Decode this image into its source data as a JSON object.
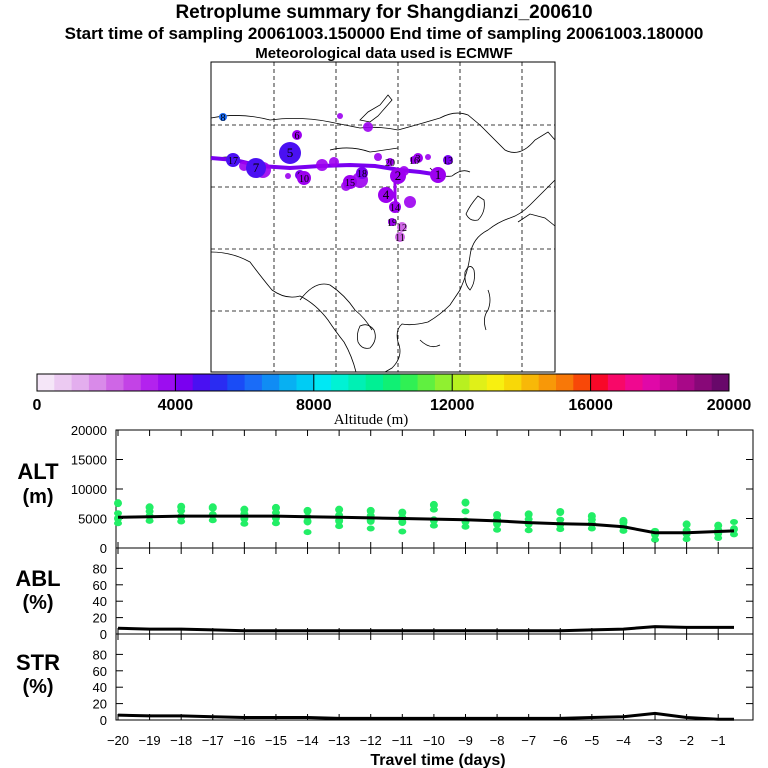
{
  "titles": {
    "main": "Retroplume summary for Shangdianzi_200610",
    "sampling": "Start time of sampling 20061003.150000     End time of sampling 20061003.180000",
    "met": "Meteorological data used is ECMWF"
  },
  "colorbar": {
    "label": "Altitude (m)",
    "ticks": [
      "0",
      "4000",
      "8000",
      "12000",
      "16000",
      "20000"
    ],
    "colors": [
      "#f5e6f8",
      "#eccaf2",
      "#e3aeee",
      "#d98ae9",
      "#cf66e6",
      "#c343e6",
      "#b322ee",
      "#9c0df0",
      "#7a00f0",
      "#4a10f2",
      "#2a2cf2",
      "#1a4cf6",
      "#1a6cf8",
      "#108cf4",
      "#08b0f2",
      "#00ccf4",
      "#00e8f4",
      "#00f2d4",
      "#00f0b4",
      "#00f094",
      "#10f074",
      "#30f054",
      "#60f040",
      "#90f030",
      "#b8f020",
      "#e0f018",
      "#f8f010",
      "#f8d808",
      "#f8b808",
      "#f89808",
      "#f87808",
      "#f84808",
      "#f80828",
      "#f80868",
      "#f00890",
      "#e008a8",
      "#c80898",
      "#a80888",
      "#880878",
      "#68086a"
    ]
  },
  "map": {
    "numbered_clusters": [
      {
        "label": "1",
        "color": "#9c00f0"
      },
      {
        "label": "2",
        "color": "#9c00f0"
      },
      {
        "label": "3",
        "color": "#9c00f0"
      },
      {
        "label": "4",
        "color": "#9c00f0"
      },
      {
        "label": "5",
        "color": "#4a10f2"
      },
      {
        "label": "6",
        "color": "#9c00f0"
      },
      {
        "label": "7",
        "color": "#4a10f2"
      },
      {
        "label": "8",
        "color": "#1a6cf8"
      },
      {
        "label": "9",
        "color": "#7a00f0"
      },
      {
        "label": "10",
        "color": "#9c00f0"
      },
      {
        "label": "11",
        "color": "#cf66e6"
      },
      {
        "label": "12",
        "color": "#cf66e6"
      },
      {
        "label": "13",
        "color": "#7a00f0"
      },
      {
        "label": "14",
        "color": "#9c00f0"
      },
      {
        "label": "15",
        "color": "#9c00f0"
      },
      {
        "label": "16",
        "color": "#9c00f0"
      },
      {
        "label": "17",
        "color": "#4a10f2"
      },
      {
        "label": "18",
        "color": "#7a00f0"
      },
      {
        "label": "19",
        "color": "#9c00f0"
      },
      {
        "label": "20",
        "color": "#9c00f0"
      }
    ]
  },
  "chart_data": [
    {
      "type": "line",
      "panel": "ALT",
      "ylabel": "ALT",
      "yunit": "(m)",
      "ylim": [
        0,
        20000
      ],
      "yticks": [
        "20000",
        "15000",
        "10000",
        "5000",
        "0"
      ],
      "x": [
        -20,
        -19,
        -18,
        -17,
        -16,
        -15,
        -14,
        -13,
        -12,
        -11,
        -10,
        -9,
        -8,
        -7,
        -6,
        -5,
        -4,
        -3,
        -2,
        -1,
        -0.5
      ],
      "values": [
        5200,
        5300,
        5400,
        5400,
        5400,
        5400,
        5300,
        5200,
        5100,
        5000,
        4900,
        4800,
        4600,
        4300,
        4100,
        4000,
        3600,
        2600,
        2600,
        2800,
        2900
      ],
      "cluster_points": [
        {
          "x": -20,
          "y": [
            4200,
            5000,
            5900,
            7600
          ]
        },
        {
          "x": -19,
          "y": [
            4600,
            5400,
            6200,
            6900
          ]
        },
        {
          "x": -18,
          "y": [
            4500,
            5300,
            6300,
            7000
          ]
        },
        {
          "x": -17,
          "y": [
            4700,
            5600,
            6700,
            6900
          ]
        },
        {
          "x": -16,
          "y": [
            4100,
            5000,
            5800,
            6500
          ]
        },
        {
          "x": -15,
          "y": [
            4200,
            5100,
            6000,
            6800
          ]
        },
        {
          "x": -14,
          "y": [
            2700,
            4500,
            5300,
            6300
          ]
        },
        {
          "x": -13,
          "y": [
            3700,
            4600,
            5600,
            6500
          ]
        },
        {
          "x": -12,
          "y": [
            3300,
            4600,
            5500,
            6300
          ]
        },
        {
          "x": -11,
          "y": [
            2800,
            4400,
            5200,
            6000
          ]
        },
        {
          "x": -10,
          "y": [
            3800,
            4700,
            6500,
            7300
          ]
        },
        {
          "x": -9,
          "y": [
            3600,
            4500,
            6200,
            7700
          ]
        },
        {
          "x": -8,
          "y": [
            3100,
            4100,
            4900,
            5600
          ]
        },
        {
          "x": -7,
          "y": [
            3000,
            4100,
            4900,
            5700
          ]
        },
        {
          "x": -6,
          "y": [
            3200,
            4000,
            4800,
            6100
          ]
        },
        {
          "x": -5,
          "y": [
            3300,
            4100,
            4800,
            5400
          ]
        },
        {
          "x": -4,
          "y": [
            2900,
            3600,
            4300,
            4600
          ]
        },
        {
          "x": -3,
          "y": [
            1400,
            2300,
            2900
          ]
        },
        {
          "x": -2,
          "y": [
            1500,
            2400,
            3000,
            4000
          ]
        },
        {
          "x": -1,
          "y": [
            1700,
            2500,
            3100,
            3800
          ]
        },
        {
          "x": -0.5,
          "y": [
            2300,
            3200,
            4400
          ]
        }
      ]
    },
    {
      "type": "line",
      "panel": "ABL",
      "ylabel": "ABL",
      "yunit": "(%)",
      "ylim": [
        0,
        100
      ],
      "yticks": [
        "80",
        "60",
        "40",
        "20",
        "0"
      ],
      "x": [
        -20,
        -19,
        -18,
        -17,
        -16,
        -15,
        -14,
        -13,
        -12,
        -11,
        -10,
        -9,
        -8,
        -7,
        -6,
        -5,
        -4,
        -3,
        -2,
        -1,
        -0.5
      ],
      "values": [
        7,
        6,
        6,
        5,
        4,
        4,
        4,
        4,
        4,
        4,
        4,
        4,
        4,
        4,
        4,
        5,
        6,
        9,
        8,
        8,
        8
      ]
    },
    {
      "type": "line",
      "panel": "STR",
      "ylabel": "STR",
      "yunit": "(%)",
      "ylim": [
        0,
        100
      ],
      "yticks": [
        "80",
        "60",
        "40",
        "20",
        "0"
      ],
      "x": [
        -20,
        -19,
        -18,
        -17,
        -16,
        -15,
        -14,
        -13,
        -12,
        -11,
        -10,
        -9,
        -8,
        -7,
        -6,
        -5,
        -4,
        -3,
        -2,
        -1,
        -0.5
      ],
      "values": [
        6,
        5,
        5,
        4,
        3,
        3,
        3,
        2,
        2,
        2,
        2,
        2,
        2,
        2,
        2,
        3,
        4,
        8,
        3,
        1,
        1
      ]
    }
  ],
  "xaxis": {
    "label": "Travel time (days)",
    "ticks": [
      "−20",
      "−19",
      "−18",
      "−17",
      "−16",
      "−15",
      "−14",
      "−13",
      "−12",
      "−11",
      "−10",
      "−9",
      "−8",
      "−7",
      "−6",
      "−5",
      "−4",
      "−3",
      "−2",
      "−1"
    ]
  },
  "colors": {
    "cluster_points": "#22ee66",
    "line": "#000000"
  }
}
